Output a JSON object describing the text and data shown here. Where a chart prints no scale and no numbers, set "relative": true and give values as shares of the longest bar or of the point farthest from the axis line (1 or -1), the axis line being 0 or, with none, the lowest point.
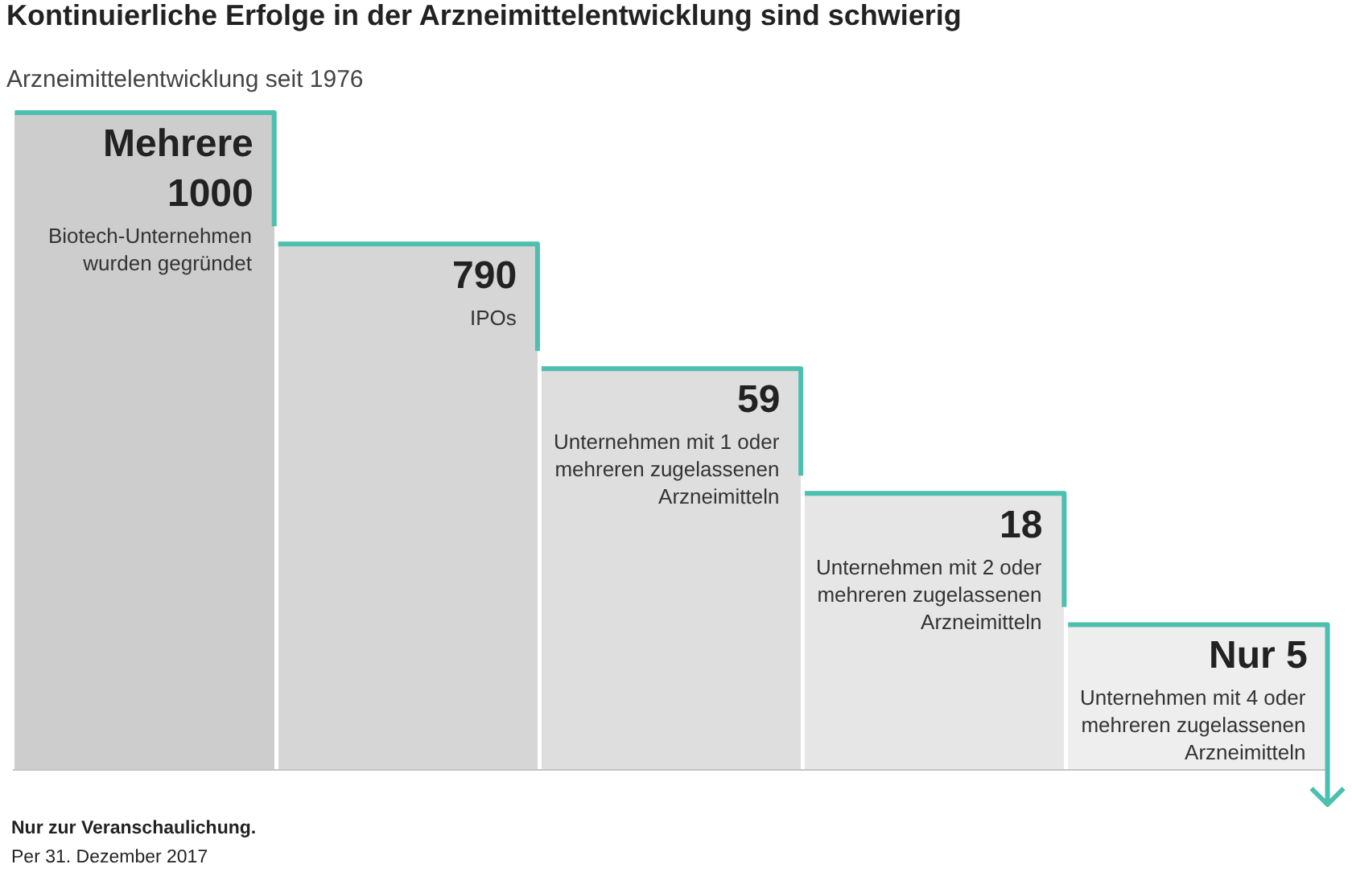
{
  "chart_data": {
    "type": "bar",
    "title": "Kontinuierliche Erfolge in der Arzneimittelentwicklung sind schwierig",
    "subtitle": "Arzneimittelentwicklung seit 1976",
    "categories": [
      null,
      null,
      null,
      null,
      null
    ],
    "values": [
      1,
      0.8,
      0.61,
      0.42,
      0.22
    ],
    "colors": [
      "#cdcdcd",
      "#d6d6d6",
      "#dedede",
      "#e6e6e6",
      "#eeeeee"
    ],
    "relative": true,
    "annotations": [
      "Mehrere 1000",
      "Biotech-Unternehmen wurden gegründet",
      "790",
      "IPOs",
      "59",
      "Unternehmen mit 1 oder mehreren zugelassenen Arzneimitteln",
      "18",
      "Unternehmen mit 2 oder mehreren zugelassenen Arzneimitteln",
      "Nur 5",
      "Unternehmen mit 4 oder mehreren zugelassenen Arzneimitteln",
      "Nur zur Veranschaulichung.",
      "Per 31. Dezember 2017"
    ]
  }
}
